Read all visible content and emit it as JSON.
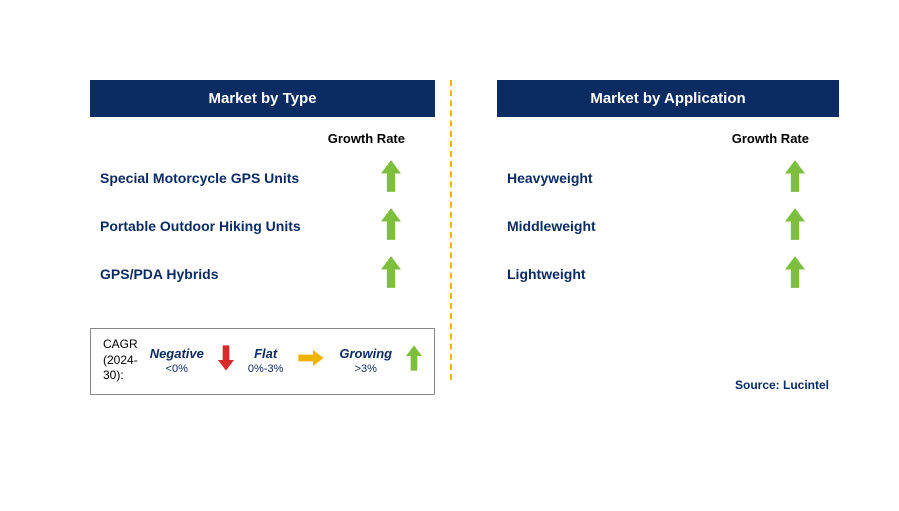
{
  "colors": {
    "header_bg": "#0b2b63",
    "header_text": "#ffffff",
    "label_text": "#0b2b63",
    "legend_text": "#0b2b63",
    "growth_arrow": "#7fbf3f",
    "flat_arrow": "#f0b400",
    "negative_arrow": "#d82a2a",
    "divider": "#f0b400",
    "source_text": "#0b2b63"
  },
  "left_panel": {
    "title": "Market by Type",
    "growth_rate_label": "Growth Rate",
    "rows": [
      {
        "label": "Special Motorcycle GPS Units",
        "trend": "growing"
      },
      {
        "label": "Portable Outdoor Hiking Units",
        "trend": "growing"
      },
      {
        "label": "GPS/PDA Hybrids",
        "trend": "growing"
      }
    ]
  },
  "right_panel": {
    "title": "Market by Application",
    "growth_rate_label": "Growth Rate",
    "rows": [
      {
        "label": "Heavyweight",
        "trend": "growing"
      },
      {
        "label": "Middleweight",
        "trend": "growing"
      },
      {
        "label": "Lightweight",
        "trend": "growing"
      }
    ]
  },
  "legend": {
    "left_line1": "CAGR",
    "left_line2": "(2024-30):",
    "negative_title": "Negative",
    "negative_sub": "<0%",
    "flat_title": "Flat",
    "flat_sub": "0%-3%",
    "growing_title": "Growing",
    "growing_sub": ">3%"
  },
  "source": "Source: Lucintel"
}
